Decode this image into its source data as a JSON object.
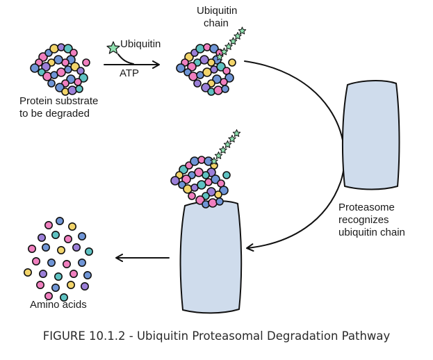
{
  "labels": {
    "ubiquitin": "Ubiquitin",
    "atp": "ATP",
    "protein_substrate_line1": "Protein substrate",
    "protein_substrate_line2": "to be degraded",
    "ubiquitin_chain_line1": "Ubiquitin",
    "ubiquitin_chain_line2": "chain",
    "proteasome_line1": "Proteasome",
    "proteasome_line2": "recognizes",
    "proteasome_line3": "ubiquitin chain",
    "amino_acids": "Amino acids"
  },
  "caption": "FIGURE 10.1.2 - Ubiquitin Proteasomal Degradation Pathway",
  "colors": {
    "proteasome_fill": "#cfdcec",
    "ubiquitin_star": "#8fe0b0",
    "bead_pink": "#f07fbf",
    "bead_blue": "#6f95d6",
    "bead_yellow": "#f2d46a",
    "bead_purple": "#9b7fd8",
    "bead_teal": "#5ec2c2",
    "outline": "#111111"
  }
}
